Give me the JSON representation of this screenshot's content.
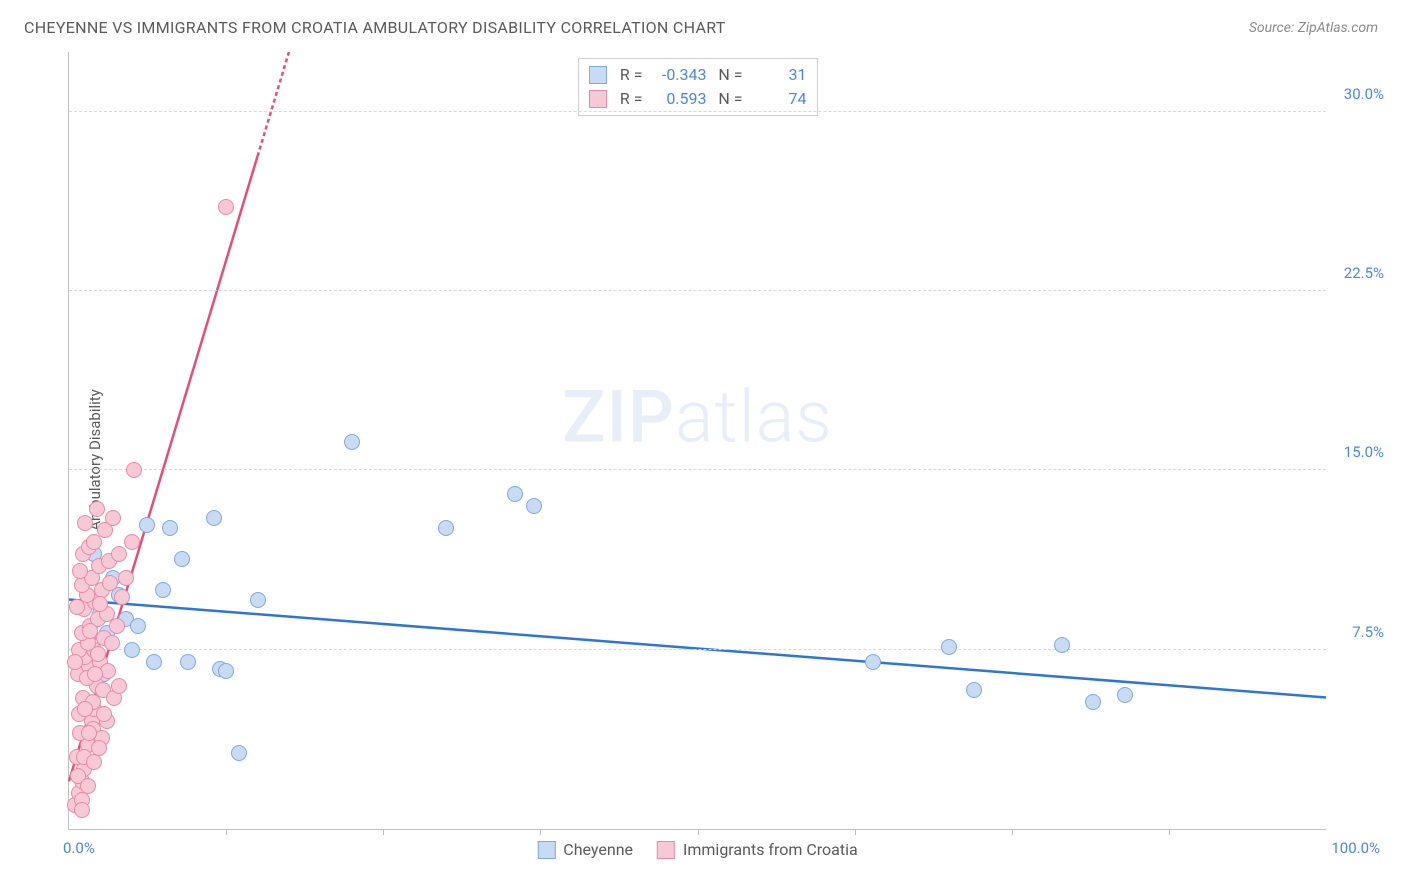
{
  "header": {
    "title": "CHEYENNE VS IMMIGRANTS FROM CROATIA AMBULATORY DISABILITY CORRELATION CHART",
    "source": "Source: ZipAtlas.com"
  },
  "watermark": {
    "zip": "ZIP",
    "atlas": "atlas"
  },
  "chart": {
    "type": "scatter",
    "ylabel": "Ambulatory Disability",
    "xlim": [
      0,
      100
    ],
    "ylim": [
      0,
      32.5
    ],
    "x_ticks": [
      12.5,
      25,
      37.5,
      50,
      62.5,
      75,
      87.5
    ],
    "x_labels": [
      {
        "v": 0,
        "t": "0.0%"
      },
      {
        "v": 100,
        "t": "100.0%"
      }
    ],
    "y_gridlines": [
      7.5,
      15.0,
      22.5,
      30.0
    ],
    "y_labels": [
      {
        "v": 7.5,
        "t": "7.5%"
      },
      {
        "v": 15.0,
        "t": "15.0%"
      },
      {
        "v": 22.5,
        "t": "22.5%"
      },
      {
        "v": 30.0,
        "t": "30.0%"
      }
    ],
    "background_color": "#ffffff",
    "grid_color": "#d9d9d9",
    "axis_color": "#bfbfbf",
    "marker_radius": 8,
    "marker_stroke_width": 1.5,
    "series": [
      {
        "name": "Cheyenne",
        "color_fill": "#c7dbf5",
        "color_stroke": "#7fa9e0",
        "correlation_r": "-0.343",
        "correlation_n": "31",
        "trend": {
          "x1": 0,
          "y1": 9.6,
          "x2": 100,
          "y2": 5.5,
          "color": "#2e75d6",
          "width": 2.5
        },
        "points": [
          [
            2.5,
            9.0
          ],
          [
            3.0,
            8.2
          ],
          [
            4.0,
            9.8
          ],
          [
            5.0,
            7.5
          ],
          [
            6.2,
            12.7
          ],
          [
            6.8,
            7.0
          ],
          [
            8.0,
            12.6
          ],
          [
            9.0,
            11.3
          ],
          [
            9.5,
            7.0
          ],
          [
            11.5,
            13.0
          ],
          [
            12.0,
            6.7
          ],
          [
            12.5,
            6.6
          ],
          [
            13.5,
            3.2
          ],
          [
            15.0,
            9.6
          ],
          [
            22.5,
            16.2
          ],
          [
            30.0,
            12.6
          ],
          [
            35.5,
            14.0
          ],
          [
            37.0,
            13.5
          ],
          [
            64.0,
            7.0
          ],
          [
            70.0,
            7.6
          ],
          [
            72.0,
            5.8
          ],
          [
            79.0,
            7.7
          ],
          [
            81.5,
            5.3
          ],
          [
            84.0,
            5.6
          ],
          [
            3.5,
            10.5
          ],
          [
            4.5,
            8.8
          ],
          [
            2.0,
            11.5
          ],
          [
            1.5,
            8.0
          ],
          [
            2.8,
            6.5
          ],
          [
            5.5,
            8.5
          ],
          [
            7.5,
            10.0
          ]
        ]
      },
      {
        "name": "Immigrants from Croatia",
        "color_fill": "#f7c9d6",
        "color_stroke": "#e88aa5",
        "correlation_r": "0.593",
        "correlation_n": "74",
        "trend": {
          "x1": 0,
          "y1": 2.0,
          "x2": 17.5,
          "y2": 32.5,
          "color": "#e84d7a",
          "width": 2.5,
          "dash_after_x": 15.0
        },
        "points": [
          [
            0.5,
            1.0
          ],
          [
            0.8,
            1.5
          ],
          [
            1.0,
            2.0
          ],
          [
            1.2,
            2.5
          ],
          [
            0.6,
            3.0
          ],
          [
            1.5,
            3.5
          ],
          [
            0.9,
            4.0
          ],
          [
            1.8,
            4.5
          ],
          [
            2.0,
            5.0
          ],
          [
            1.1,
            5.5
          ],
          [
            2.2,
            6.0
          ],
          [
            0.7,
            6.5
          ],
          [
            1.6,
            6.8
          ],
          [
            2.5,
            7.0
          ],
          [
            1.3,
            7.2
          ],
          [
            0.8,
            7.5
          ],
          [
            2.0,
            7.5
          ],
          [
            1.5,
            7.8
          ],
          [
            2.8,
            8.0
          ],
          [
            1.0,
            8.2
          ],
          [
            1.7,
            8.5
          ],
          [
            2.3,
            8.8
          ],
          [
            3.0,
            9.0
          ],
          [
            1.2,
            9.2
          ],
          [
            0.6,
            9.3
          ],
          [
            2.1,
            9.5
          ],
          [
            1.4,
            9.8
          ],
          [
            2.6,
            10.0
          ],
          [
            1.0,
            10.2
          ],
          [
            1.8,
            10.5
          ],
          [
            0.9,
            10.8
          ],
          [
            2.4,
            11.0
          ],
          [
            3.2,
            11.2
          ],
          [
            1.1,
            11.5
          ],
          [
            1.6,
            11.8
          ],
          [
            2.0,
            12.0
          ],
          [
            2.9,
            12.5
          ],
          [
            1.3,
            12.8
          ],
          [
            3.5,
            13.0
          ],
          [
            2.2,
            13.4
          ],
          [
            0.8,
            4.8
          ],
          [
            1.9,
            5.3
          ],
          [
            2.7,
            5.8
          ],
          [
            1.4,
            6.3
          ],
          [
            3.1,
            6.6
          ],
          [
            0.5,
            7.0
          ],
          [
            1.7,
            8.3
          ],
          [
            2.5,
            9.4
          ],
          [
            3.3,
            10.3
          ],
          [
            4.0,
            11.5
          ],
          [
            1.9,
            4.2
          ],
          [
            2.6,
            3.8
          ],
          [
            0.7,
            2.2
          ],
          [
            1.0,
            1.2
          ],
          [
            3.8,
            8.5
          ],
          [
            4.2,
            9.7
          ],
          [
            1.2,
            3.0
          ],
          [
            2.0,
            2.8
          ],
          [
            2.4,
            3.4
          ],
          [
            3.0,
            4.5
          ],
          [
            3.6,
            5.5
          ],
          [
            1.5,
            1.8
          ],
          [
            4.5,
            10.5
          ],
          [
            5.0,
            12.0
          ],
          [
            2.8,
            4.8
          ],
          [
            2.1,
            6.5
          ],
          [
            1.0,
            0.8
          ],
          [
            3.4,
            7.8
          ],
          [
            4.0,
            6.0
          ],
          [
            5.2,
            15.0
          ],
          [
            12.5,
            26.0
          ],
          [
            1.3,
            5.0
          ],
          [
            1.6,
            4.0
          ],
          [
            2.3,
            7.3
          ]
        ]
      }
    ]
  },
  "legend_top": {
    "r_label": "R =",
    "n_label": "N ="
  },
  "legend_bottom_labels": [
    "Cheyenne",
    "Immigrants from Croatia"
  ]
}
